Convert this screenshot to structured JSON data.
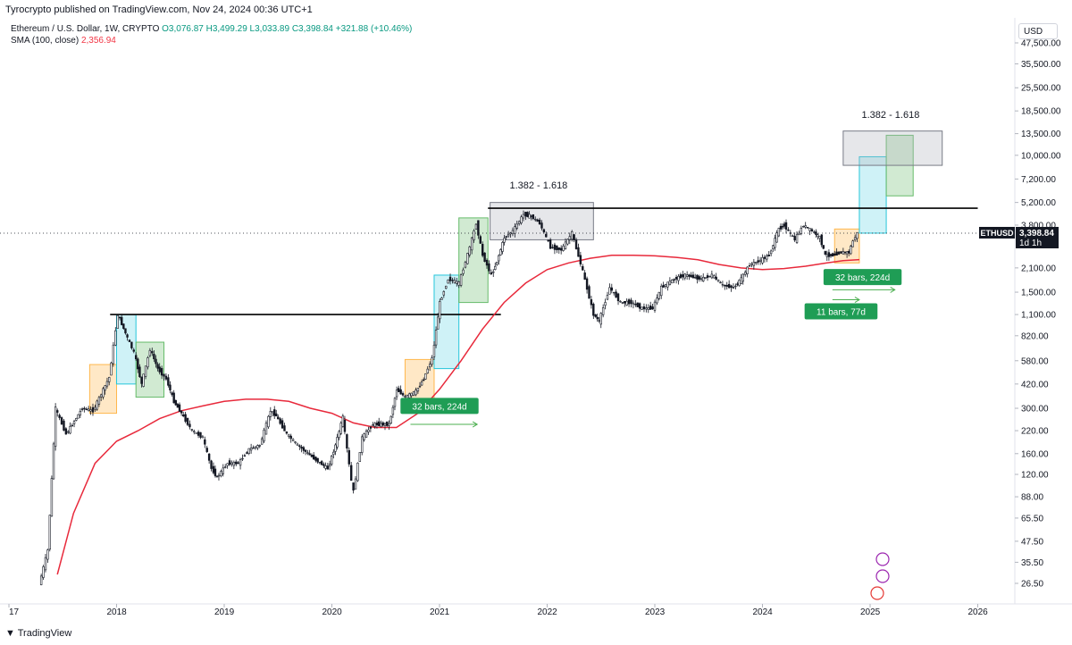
{
  "header": {
    "published_line": "Tyrocrypto published on TradingView.com, Nov 24, 2024 00:36 UTC+1",
    "symbol_title": "Ethereum / U.S. Dollar, 1W, CRYPTO",
    "ohlc": "O3,076.87 H3,499.29 L3,033.89 C3,398.84 +321.88 (+10.46%)",
    "sma_label": "SMA (100, close)",
    "sma_value": "2,356.94"
  },
  "currency_button": "USD",
  "footer": {
    "brand": "TradingView",
    "logo_glyph": "17"
  },
  "colors": {
    "up": "#089981",
    "sma": "#e8293b",
    "cyan_box": "#26c6da",
    "orange_box": "#ffb74d",
    "green_box": "#66bb6a",
    "grey_box": "#b2b5be",
    "label_green": "#1f9d55"
  },
  "chart_data": {
    "type": "candlestick",
    "symbol": "ETHUSD",
    "interval": "1W",
    "y_scale": "log",
    "y_ticks": [
      "47,500.00",
      "35,500.00",
      "25,500.00",
      "18,500.00",
      "13,500.00",
      "10,000.00",
      "7,200.00",
      "5,200.00",
      "3,800.00",
      "2,100.00",
      "1,500.00",
      "1,100.00",
      "820.00",
      "580.00",
      "420.00",
      "300.00",
      "220.00",
      "160.00",
      "120.00",
      "88.00",
      "65.50",
      "47.50",
      "35.50",
      "26.50"
    ],
    "y_tick_values": [
      47500,
      35500,
      25500,
      18500,
      13500,
      10000,
      7200,
      5200,
      3800,
      2100,
      1500,
      1100,
      820,
      580,
      420,
      300,
      220,
      160,
      120,
      88,
      65.5,
      47.5,
      35.5,
      26.5
    ],
    "x_ticks": [
      "17",
      "2018",
      "2019",
      "2020",
      "2021",
      "2022",
      "2023",
      "2024",
      "2025",
      "2026"
    ],
    "x_tick_years": [
      2017,
      2018,
      2019,
      2020,
      2021,
      2022,
      2023,
      2024,
      2025,
      2026
    ],
    "price_series": [
      [
        2017.3,
        26
      ],
      [
        2017.38,
        42
      ],
      [
        2017.45,
        300
      ],
      [
        2017.55,
        210
      ],
      [
        2017.7,
        300
      ],
      [
        2017.8,
        290
      ],
      [
        2017.95,
        460
      ],
      [
        2018.03,
        1100
      ],
      [
        2018.1,
        850
      ],
      [
        2018.18,
        650
      ],
      [
        2018.25,
        420
      ],
      [
        2018.33,
        680
      ],
      [
        2018.4,
        520
      ],
      [
        2018.48,
        450
      ],
      [
        2018.55,
        330
      ],
      [
        2018.62,
        280
      ],
      [
        2018.72,
        220
      ],
      [
        2018.82,
        200
      ],
      [
        2018.9,
        130
      ],
      [
        2018.95,
        115
      ],
      [
        2019.05,
        140
      ],
      [
        2019.15,
        140
      ],
      [
        2019.25,
        170
      ],
      [
        2019.35,
        180
      ],
      [
        2019.45,
        290
      ],
      [
        2019.5,
        270
      ],
      [
        2019.6,
        210
      ],
      [
        2019.7,
        180
      ],
      [
        2019.85,
        150
      ],
      [
        2019.98,
        130
      ],
      [
        2020.05,
        180
      ],
      [
        2020.12,
        265
      ],
      [
        2020.2,
        110
      ],
      [
        2020.22,
        95
      ],
      [
        2020.3,
        200
      ],
      [
        2020.4,
        240
      ],
      [
        2020.55,
        240
      ],
      [
        2020.62,
        390
      ],
      [
        2020.7,
        350
      ],
      [
        2020.8,
        380
      ],
      [
        2020.87,
        450
      ],
      [
        2020.95,
        600
      ],
      [
        2021.02,
        1300
      ],
      [
        2021.1,
        1800
      ],
      [
        2021.2,
        1700
      ],
      [
        2021.3,
        2800
      ],
      [
        2021.36,
        3900
      ],
      [
        2021.42,
        2500
      ],
      [
        2021.5,
        1900
      ],
      [
        2021.55,
        2300
      ],
      [
        2021.62,
        3200
      ],
      [
        2021.7,
        3500
      ],
      [
        2021.8,
        4400
      ],
      [
        2021.87,
        4300
      ],
      [
        2021.95,
        3900
      ],
      [
        2022.05,
        2800
      ],
      [
        2022.15,
        2700
      ],
      [
        2022.25,
        3400
      ],
      [
        2022.35,
        2000
      ],
      [
        2022.45,
        1100
      ],
      [
        2022.5,
        1000
      ],
      [
        2022.6,
        1600
      ],
      [
        2022.7,
        1300
      ],
      [
        2022.8,
        1300
      ],
      [
        2022.9,
        1200
      ],
      [
        2023.0,
        1200
      ],
      [
        2023.08,
        1600
      ],
      [
        2023.2,
        1800
      ],
      [
        2023.3,
        1900
      ],
      [
        2023.45,
        1800
      ],
      [
        2023.55,
        1900
      ],
      [
        2023.65,
        1650
      ],
      [
        2023.75,
        1600
      ],
      [
        2023.82,
        1800
      ],
      [
        2023.9,
        2200
      ],
      [
        2023.98,
        2300
      ],
      [
        2024.08,
        2500
      ],
      [
        2024.17,
        3600
      ],
      [
        2024.22,
        3800
      ],
      [
        2024.32,
        3100
      ],
      [
        2024.4,
        3800
      ],
      [
        2024.48,
        3500
      ],
      [
        2024.55,
        3200
      ],
      [
        2024.6,
        2500
      ],
      [
        2024.67,
        2500
      ],
      [
        2024.75,
        2600
      ],
      [
        2024.82,
        2600
      ],
      [
        2024.86,
        3050
      ],
      [
        2024.9,
        3398.84
      ]
    ],
    "sma_series": [
      [
        2017.45,
        30
      ],
      [
        2017.6,
        70
      ],
      [
        2017.8,
        140
      ],
      [
        2018.0,
        190
      ],
      [
        2018.2,
        220
      ],
      [
        2018.4,
        260
      ],
      [
        2018.6,
        290
      ],
      [
        2018.8,
        310
      ],
      [
        2019.0,
        330
      ],
      [
        2019.2,
        340
      ],
      [
        2019.4,
        340
      ],
      [
        2019.6,
        330
      ],
      [
        2019.8,
        300
      ],
      [
        2020.0,
        280
      ],
      [
        2020.2,
        245
      ],
      [
        2020.4,
        230
      ],
      [
        2020.6,
        230
      ],
      [
        2020.8,
        280
      ],
      [
        2021.0,
        390
      ],
      [
        2021.2,
        580
      ],
      [
        2021.4,
        900
      ],
      [
        2021.6,
        1300
      ],
      [
        2021.8,
        1700
      ],
      [
        2022.0,
        2050
      ],
      [
        2022.2,
        2250
      ],
      [
        2022.4,
        2400
      ],
      [
        2022.6,
        2500
      ],
      [
        2022.8,
        2500
      ],
      [
        2023.0,
        2480
      ],
      [
        2023.2,
        2430
      ],
      [
        2023.4,
        2350
      ],
      [
        2023.6,
        2200
      ],
      [
        2023.8,
        2100
      ],
      [
        2024.0,
        2050
      ],
      [
        2024.2,
        2080
      ],
      [
        2024.4,
        2150
      ],
      [
        2024.6,
        2250
      ],
      [
        2024.75,
        2320
      ],
      [
        2024.9,
        2356.94
      ]
    ],
    "horizontal_lines": [
      {
        "x1": 2017.94,
        "x2": 2021.57,
        "y": 1100
      },
      {
        "x1": 2021.45,
        "x2": 2026.0,
        "y": 4800
      }
    ],
    "boxes": [
      {
        "color": "orange",
        "x1": 2017.75,
        "x2": 2018.0,
        "y_low": 280,
        "y_high": 550
      },
      {
        "color": "cyan",
        "x1": 2018.0,
        "x2": 2018.18,
        "y_low": 420,
        "y_high": 1100
      },
      {
        "color": "green",
        "x1": 2018.18,
        "x2": 2018.44,
        "y_low": 350,
        "y_high": 750
      },
      {
        "color": "orange",
        "x1": 2020.68,
        "x2": 2020.95,
        "y_low": 300,
        "y_high": 590
      },
      {
        "color": "cyan",
        "x1": 2020.95,
        "x2": 2021.18,
        "y_low": 520,
        "y_high": 1900
      },
      {
        "color": "green",
        "x1": 2021.18,
        "x2": 2021.45,
        "y_low": 1300,
        "y_high": 4200
      },
      {
        "color": "grey",
        "x1": 2021.47,
        "x2": 2022.43,
        "y_low": 3100,
        "y_high": 5200
      },
      {
        "color": "orange",
        "x1": 2024.67,
        "x2": 2024.9,
        "y_low": 2250,
        "y_high": 3600
      },
      {
        "color": "cyan",
        "x1": 2024.9,
        "x2": 2025.15,
        "y_low": 3400,
        "y_high": 9800
      },
      {
        "color": "green",
        "x1": 2025.15,
        "x2": 2025.4,
        "y_low": 5700,
        "y_high": 13200
      },
      {
        "color": "grey",
        "x1": 2024.75,
        "x2": 2025.67,
        "y_low": 8700,
        "y_high": 14000
      }
    ],
    "annotations": [
      {
        "text": "1.382 - 1.618",
        "x": 2021.95,
        "y": 6300
      },
      {
        "text": "1.382 - 1.618",
        "x": 2025.22,
        "y": 16800
      }
    ],
    "bar_labels": [
      {
        "text": "32 bars, 224d",
        "x": 2021.0,
        "y": 310,
        "arrow_x1": 2020.73,
        "arrow_x2": 2021.35,
        "arrow_y": 240
      },
      {
        "text": "32 bars, 224d",
        "x": 2024.93,
        "y": 1850,
        "arrow_x1": 2024.65,
        "arrow_x2": 2025.23,
        "arrow_y": 1550
      },
      {
        "text": "11 bars, 77d",
        "x": 2024.73,
        "y": 1150,
        "arrow_x1": 2024.65,
        "arrow_x2": 2024.9,
        "arrow_y": 1350
      }
    ],
    "last_price_label": {
      "symbol": "ETHUSD",
      "price": "3,398.84",
      "countdown": "1d 1h",
      "value": 3398.84
    }
  }
}
